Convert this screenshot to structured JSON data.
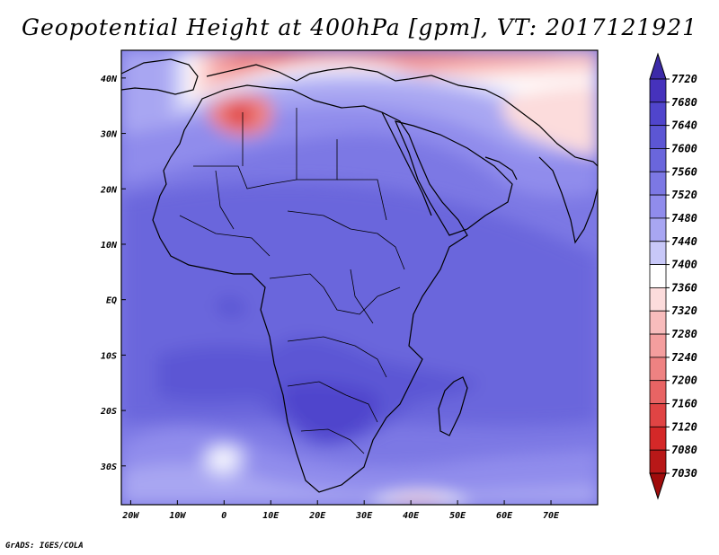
{
  "title": "Geopotential Height at 400hPa [gpm], VT: 2017121921",
  "credit": "GrADS: IGES/COLA",
  "map": {
    "lon_range": [
      -22,
      80
    ],
    "lat_range": [
      -37,
      45
    ],
    "lon_ticks": [
      {
        "value": -20,
        "label": "20W"
      },
      {
        "value": -10,
        "label": "10W"
      },
      {
        "value": 0,
        "label": "0"
      },
      {
        "value": 10,
        "label": "10E"
      },
      {
        "value": 20,
        "label": "20E"
      },
      {
        "value": 30,
        "label": "30E"
      },
      {
        "value": 40,
        "label": "40E"
      },
      {
        "value": 50,
        "label": "50E"
      },
      {
        "value": 60,
        "label": "60E"
      },
      {
        "value": 70,
        "label": "70E"
      }
    ],
    "lat_ticks": [
      {
        "value": 40,
        "label": "40N"
      },
      {
        "value": 30,
        "label": "30N"
      },
      {
        "value": 20,
        "label": "20N"
      },
      {
        "value": 10,
        "label": "10N"
      },
      {
        "value": 0,
        "label": "EQ"
      },
      {
        "value": -10,
        "label": "10S"
      },
      {
        "value": -20,
        "label": "20S"
      },
      {
        "value": -30,
        "label": "30S"
      }
    ]
  },
  "colorbar": {
    "labels": [
      "7720",
      "7680",
      "7640",
      "7600",
      "7560",
      "7520",
      "7480",
      "7440",
      "7400",
      "7360",
      "7320",
      "7280",
      "7240",
      "7200",
      "7160",
      "7120",
      "7080",
      "7030"
    ],
    "colors": [
      "#3c2aa8",
      "#4632bc",
      "#5045cc",
      "#5c56d4",
      "#6a66dc",
      "#7c78e4",
      "#908cec",
      "#a8a6f2",
      "#c8c8f8",
      "#ffffff",
      "#fcdcdc",
      "#f8bcbc",
      "#f49e9e",
      "#ee8282",
      "#e86464",
      "#e04444",
      "#d42828",
      "#b81818",
      "#a00c0c"
    ]
  }
}
